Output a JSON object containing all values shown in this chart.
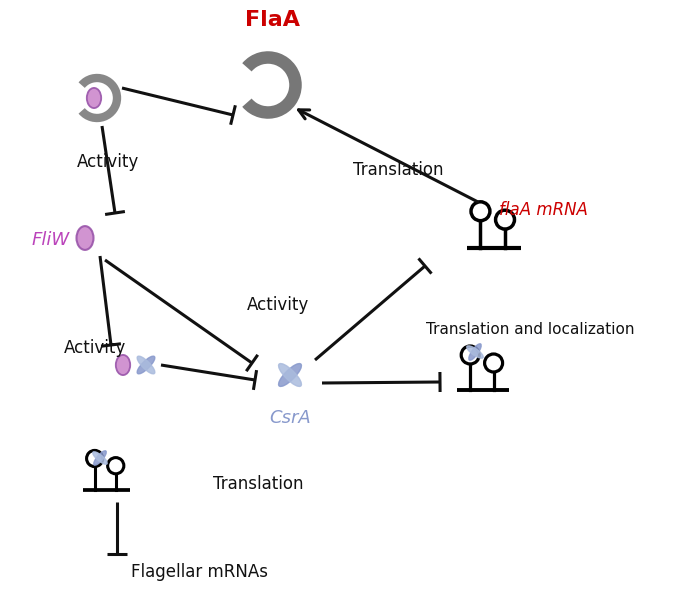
{
  "bg_color": "#ffffff",
  "flaa_label": "FlaA",
  "flaa_color": "#cc0000",
  "flaa_arc_color": "#666666",
  "fliw_label": "FliW",
  "fliw_color": "#bb44bb",
  "fliw_oval_fill": "#cc88cc",
  "fliw_oval_edge": "#9955aa",
  "csra_label": "CsrA",
  "csra_color": "#8899cc",
  "csra_body_fill": "#8899cc",
  "csra_wing_fill": "#aabbdd",
  "mrna_label": "flaA mRNA",
  "mrna_color": "#cc0000",
  "flagellar_label": "Flagellar mRNAs",
  "text_color": "#111111",
  "line_color": "#111111",
  "activity_label": "Activity",
  "translation_label": "Translation",
  "transl_local_label": "Translation and localization",
  "lw": 2.2,
  "bar_half": 10
}
